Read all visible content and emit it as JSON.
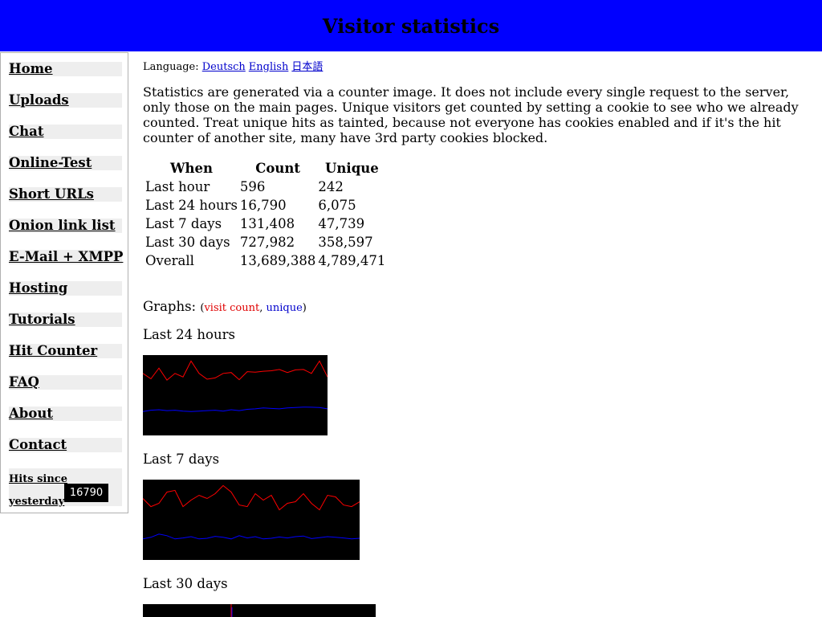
{
  "page": {
    "title": "Visitor statistics"
  },
  "sidebar": {
    "items": [
      {
        "label": "Home"
      },
      {
        "label": "Uploads"
      },
      {
        "label": "Chat"
      },
      {
        "label": "Online-Test"
      },
      {
        "label": "Short URLs"
      },
      {
        "label": "Onion link list"
      },
      {
        "label": "E-Mail + XMPP"
      },
      {
        "label": "Hosting"
      },
      {
        "label": "Tutorials"
      },
      {
        "label": "Hit Counter"
      },
      {
        "label": "FAQ"
      },
      {
        "label": "About"
      },
      {
        "label": "Contact"
      }
    ],
    "hits_label": "Hits since yesterday",
    "hits_value": "16790"
  },
  "language": {
    "label": "Language:",
    "options": [
      "Deutsch",
      "English",
      "日本語"
    ]
  },
  "intro": "Statistics are generated via a counter image. It does not include every single request to the server, only those on the main pages. Unique visitors get counted by setting a cookie to see who we already counted. Treat unique hits as tainted, because not everyone has cookies enabled and if it's the hit counter of another site, many have 3rd party cookies blocked.",
  "stats_table": {
    "headers": [
      "When",
      "Count",
      "Unique"
    ],
    "rows": [
      [
        "Last hour",
        "596",
        "242"
      ],
      [
        "Last 24 hours",
        "16,790",
        "6,075"
      ],
      [
        "Last 7 days",
        "131,408",
        "47,739"
      ],
      [
        "Last 30 days",
        "727,982",
        "358,597"
      ],
      [
        "Overall",
        "13,689,388",
        "4,789,471"
      ]
    ]
  },
  "graphs": {
    "label": "Graphs:",
    "legend_open": "(",
    "legend_visit": "visit count",
    "legend_sep": ", ",
    "legend_unique": "unique",
    "legend_close": ")",
    "colors": {
      "visit": "#ff0000",
      "unique": "#0000ff",
      "background": "#000000"
    }
  },
  "chart_data": [
    {
      "type": "line",
      "title": "Last 24 hours",
      "xlabel": "",
      "ylabel": "",
      "grid": false,
      "x": [
        0,
        1,
        2,
        3,
        4,
        5,
        6,
        7,
        8,
        9,
        10,
        11,
        12,
        13,
        14,
        15,
        16,
        17,
        18,
        19,
        20,
        21,
        22,
        23
      ],
      "series": [
        {
          "values": [
            700,
            640,
            760,
            625,
            700,
            660,
            840,
            700,
            635,
            650,
            700,
            710,
            630,
            720,
            715,
            725,
            730,
            745,
            710,
            740,
            745,
            700,
            840,
            660
          ]
        },
        {
          "values": [
            270,
            285,
            290,
            280,
            285,
            275,
            270,
            275,
            280,
            285,
            275,
            290,
            280,
            295,
            300,
            310,
            305,
            300,
            310,
            315,
            320,
            318,
            315,
            300
          ]
        }
      ]
    },
    {
      "type": "line",
      "title": "Last 7 days",
      "xlabel": "",
      "ylabel": "",
      "grid": false,
      "x": [
        0,
        1,
        2,
        3,
        4,
        5,
        6,
        7,
        8,
        9,
        10,
        11,
        12,
        13,
        14,
        15,
        16,
        17,
        18,
        19,
        20,
        21,
        22,
        23,
        24,
        25,
        26,
        27
      ],
      "series": [
        {
          "values": [
            19000,
            16500,
            17500,
            21000,
            21500,
            16500,
            18500,
            20000,
            19000,
            20500,
            23000,
            21000,
            17000,
            16500,
            20500,
            18500,
            20000,
            15500,
            17500,
            18000,
            20500,
            17500,
            15500,
            20000,
            19500,
            17000,
            16500,
            18000
          ]
        },
        {
          "values": [
            6500,
            7000,
            8000,
            7500,
            6500,
            6800,
            7200,
            6500,
            6700,
            7300,
            7000,
            6500,
            7500,
            6800,
            7200,
            6500,
            6700,
            7100,
            6800,
            7200,
            7400,
            6600,
            6900,
            7200,
            7000,
            6800,
            6500,
            6700
          ]
        }
      ]
    },
    {
      "type": "line",
      "title": "Last 30 days",
      "xlabel": "",
      "ylabel": "",
      "grid": false,
      "series": []
    }
  ]
}
